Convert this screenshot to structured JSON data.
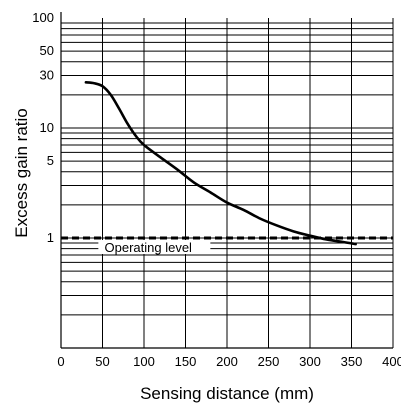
{
  "chart_data": {
    "type": "line",
    "title": "",
    "xlabel": "Sensing distance (mm)",
    "ylabel": "Excess gain ratio",
    "xlim": [
      0,
      400
    ],
    "ylim": [
      0.1,
      100
    ],
    "yscale": "log",
    "grid": true,
    "x_ticks": [
      0,
      50,
      100,
      150,
      200,
      250,
      300,
      350,
      400
    ],
    "x_tick_labels": [
      "0",
      "50",
      "100",
      "150",
      "200",
      "250",
      "300",
      "350",
      "400"
    ],
    "y_ticks": [
      1,
      5,
      10,
      30,
      50,
      100
    ],
    "y_tick_labels": [
      "1",
      "5",
      "10",
      "30",
      "50",
      "100"
    ],
    "series": [
      {
        "x": [
          30,
          40,
          50,
          60,
          70,
          80,
          90,
          100,
          120,
          140,
          160,
          180,
          200,
          220,
          240,
          260,
          280,
          300,
          320,
          340,
          355
        ],
        "y": [
          26,
          25.5,
          24,
          20,
          15,
          11,
          8.5,
          7,
          5.4,
          4.2,
          3.2,
          2.6,
          2.1,
          1.8,
          1.5,
          1.3,
          1.15,
          1.05,
          0.97,
          0.92,
          0.88
        ],
        "color": "#000000"
      }
    ],
    "annotations": [
      {
        "text": "Operating level",
        "y": 1,
        "style": "dashed"
      }
    ]
  }
}
